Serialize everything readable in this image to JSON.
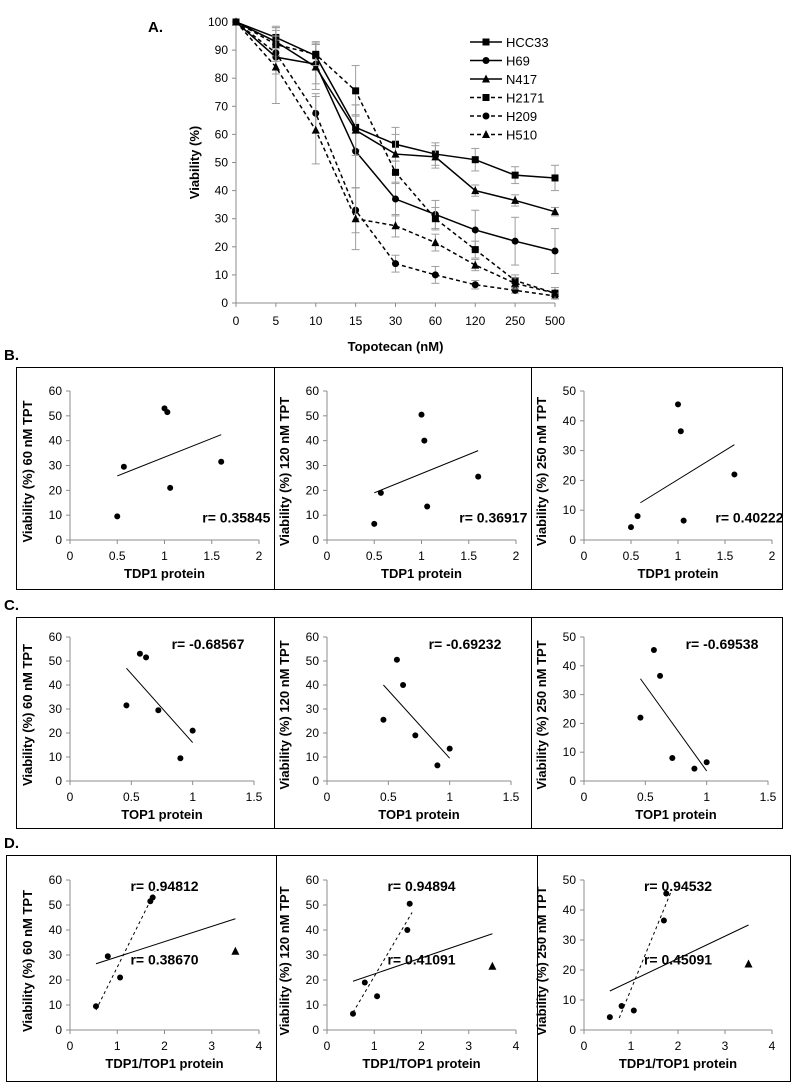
{
  "panel_labels": {
    "a": "A.",
    "b": "B.",
    "c": "C.",
    "d": "D."
  },
  "chart_data": [
    {
      "id": "A",
      "type": "line",
      "xlabel": "Topotecan (nM)",
      "ylabel": "Viability (%)",
      "categories": [
        "0",
        "5",
        "10",
        "15",
        "30",
        "60",
        "120",
        "250",
        "500"
      ],
      "ylim": [
        0,
        100
      ],
      "yticks": [
        0,
        10,
        20,
        30,
        40,
        50,
        60,
        70,
        80,
        90,
        100
      ],
      "legend_position": "top-right",
      "series": [
        {
          "name": "HCC33",
          "style": "solid",
          "marker": "square",
          "values": [
            100,
            94.5,
            88,
            62.5,
            56.5,
            53,
            51,
            45.5,
            44.5
          ],
          "err": [
            0,
            4,
            5,
            8,
            6,
            4,
            4,
            3,
            4.5
          ]
        },
        {
          "name": "H69",
          "style": "solid",
          "marker": "circle",
          "values": [
            100,
            87.5,
            85,
            54,
            37,
            31.5,
            26,
            22,
            18.5
          ],
          "err": [
            0,
            6,
            7,
            13,
            6,
            5,
            7,
            8.5,
            8
          ]
        },
        {
          "name": "N417",
          "style": "solid",
          "marker": "triangle",
          "values": [
            100,
            93,
            84,
            61.5,
            53,
            52,
            40,
            36.5,
            32.5
          ],
          "err": [
            0,
            5,
            8,
            9,
            7,
            4,
            2,
            2,
            1.5
          ]
        },
        {
          "name": "H2171",
          "style": "dashed",
          "marker": "square",
          "values": [
            100,
            92,
            88.5,
            75.5,
            46.5,
            30,
            19,
            8,
            3.5
          ],
          "err": [
            0,
            6,
            4,
            9,
            4,
            4,
            3,
            2,
            2
          ]
        },
        {
          "name": "H209",
          "style": "dashed",
          "marker": "circle",
          "values": [
            100,
            89,
            67.5,
            33,
            14,
            10,
            6.5,
            4.5,
            2.5
          ],
          "err": [
            0,
            6,
            7,
            8,
            3,
            3,
            1.5,
            1,
            1
          ]
        },
        {
          "name": "H510",
          "style": "dashed",
          "marker": "triangle",
          "values": [
            100,
            84,
            61.5,
            30,
            27.5,
            21.5,
            13.5,
            7,
            3.5
          ],
          "err": [
            0,
            13,
            12,
            11,
            4,
            3,
            2,
            2,
            2
          ]
        }
      ]
    },
    {
      "id": "B1",
      "type": "scatter",
      "xlabel": "TDP1 protein",
      "ylabel": "Viability (%) 60 nM TPT",
      "xlim": [
        0,
        2
      ],
      "xticks": [
        0,
        0.5,
        1,
        1.5,
        2
      ],
      "ylim": [
        0,
        60
      ],
      "yticks": [
        0,
        10,
        20,
        30,
        40,
        50,
        60
      ],
      "points": [
        [
          0.5,
          9.5
        ],
        [
          0.57,
          29.5
        ],
        [
          1.0,
          53
        ],
        [
          1.03,
          51.5
        ],
        [
          1.06,
          21
        ],
        [
          1.6,
          31.5
        ]
      ],
      "fit": [
        [
          0.5,
          25.8
        ],
        [
          1.6,
          42.4
        ]
      ],
      "annotation": "r= 0.35845"
    },
    {
      "id": "B2",
      "type": "scatter",
      "xlabel": "TDP1 protein",
      "ylabel": "Viability (%) 120 nM TPT",
      "xlim": [
        0,
        2
      ],
      "xticks": [
        0,
        0.5,
        1,
        1.5,
        2
      ],
      "ylim": [
        0,
        60
      ],
      "yticks": [
        0,
        10,
        20,
        30,
        40,
        50,
        60
      ],
      "points": [
        [
          0.5,
          6.5
        ],
        [
          0.57,
          19
        ],
        [
          1.0,
          50.5
        ],
        [
          1.03,
          40
        ],
        [
          1.06,
          13.5
        ],
        [
          1.6,
          25.5
        ]
      ],
      "fit": [
        [
          0.5,
          19
        ],
        [
          1.6,
          36
        ]
      ],
      "annotation": "r= 0.36917"
    },
    {
      "id": "B3",
      "type": "scatter",
      "xlabel": "TDP1 protein",
      "ylabel": "Viability (%) 250 nM TPT",
      "xlim": [
        0,
        2
      ],
      "xticks": [
        0,
        0.5,
        1,
        1.5,
        2
      ],
      "ylim": [
        0,
        50
      ],
      "yticks": [
        0,
        10,
        20,
        30,
        40,
        50
      ],
      "points": [
        [
          0.5,
          4.3
        ],
        [
          0.57,
          8
        ],
        [
          1.0,
          45.5
        ],
        [
          1.03,
          36.5
        ],
        [
          1.06,
          6.5
        ],
        [
          1.6,
          22
        ]
      ],
      "fit": [
        [
          0.6,
          12.5
        ],
        [
          1.6,
          32
        ]
      ],
      "annotation": "r= 0.40222"
    },
    {
      "id": "C1",
      "type": "scatter",
      "xlabel": "TOP1 protein",
      "ylabel": "Viability (%) 60 nM TPT",
      "xlim": [
        0,
        1.5
      ],
      "xticks": [
        0,
        0.5,
        1,
        1.5
      ],
      "ylim": [
        0,
        60
      ],
      "yticks": [
        0,
        10,
        20,
        30,
        40,
        50,
        60
      ],
      "points": [
        [
          0.46,
          31.5
        ],
        [
          0.57,
          53
        ],
        [
          0.62,
          51.5
        ],
        [
          0.72,
          29.5
        ],
        [
          0.9,
          9.5
        ],
        [
          1.0,
          21
        ]
      ],
      "fit": [
        [
          0.46,
          47
        ],
        [
          1.0,
          16
        ]
      ],
      "annotation": "r= -0.68567"
    },
    {
      "id": "C2",
      "type": "scatter",
      "xlabel": "TOP1 protein",
      "ylabel": "Viability (%) 120 nM TPT",
      "xlim": [
        0,
        1.5
      ],
      "xticks": [
        0,
        0.5,
        1,
        1.5
      ],
      "ylim": [
        0,
        60
      ],
      "yticks": [
        0,
        10,
        20,
        30,
        40,
        50,
        60
      ],
      "points": [
        [
          0.46,
          25.5
        ],
        [
          0.57,
          50.5
        ],
        [
          0.62,
          40
        ],
        [
          0.72,
          19
        ],
        [
          0.9,
          6.5
        ],
        [
          1.0,
          13.5
        ]
      ],
      "fit": [
        [
          0.46,
          40
        ],
        [
          1.0,
          9.5
        ]
      ],
      "annotation": "r= -0.69232"
    },
    {
      "id": "C3",
      "type": "scatter",
      "xlabel": "TOP1 protein",
      "ylabel": "Viability (%) 250 nM TPT",
      "xlim": [
        0,
        1.5
      ],
      "xticks": [
        0,
        0.5,
        1,
        1.5
      ],
      "ylim": [
        0,
        50
      ],
      "yticks": [
        0,
        10,
        20,
        30,
        40,
        50
      ],
      "points": [
        [
          0.46,
          22
        ],
        [
          0.57,
          45.5
        ],
        [
          0.62,
          36.5
        ],
        [
          0.72,
          8
        ],
        [
          0.9,
          4.3
        ],
        [
          1.0,
          6.5
        ]
      ],
      "fit": [
        [
          0.46,
          35.5
        ],
        [
          1.0,
          3.5
        ]
      ],
      "annotation": "r= -0.69538"
    },
    {
      "id": "D1",
      "type": "scatter",
      "xlabel": "TDP1/TOP1 protein",
      "ylabel": "Viability (%) 60 nM TPT",
      "xlim": [
        0,
        4
      ],
      "xticks": [
        0,
        1,
        2,
        3,
        4
      ],
      "ylim": [
        0,
        60
      ],
      "yticks": [
        0,
        10,
        20,
        30,
        40,
        50,
        60
      ],
      "points": [
        [
          0.55,
          9.5
        ],
        [
          0.8,
          29.5
        ],
        [
          1.06,
          21
        ],
        [
          1.7,
          51.5
        ],
        [
          1.75,
          53
        ]
      ],
      "outlier": [
        3.5,
        31.5
      ],
      "fit_dashed": [
        [
          0.55,
          8
        ],
        [
          1.8,
          55.5
        ]
      ],
      "fit_solid": [
        [
          0.55,
          26.5
        ],
        [
          3.5,
          44.5
        ]
      ],
      "annotation_dashed": "r= 0.94812",
      "annotation_solid": "r= 0.38670"
    },
    {
      "id": "D2",
      "type": "scatter",
      "xlabel": "TDP1/TOP1 protein",
      "ylabel": "Viability (%) 120 nM TPT",
      "xlim": [
        0,
        4
      ],
      "xticks": [
        0,
        1,
        2,
        3,
        4
      ],
      "ylim": [
        0,
        60
      ],
      "yticks": [
        0,
        10,
        20,
        30,
        40,
        50,
        60
      ],
      "points": [
        [
          0.55,
          6.5
        ],
        [
          0.8,
          19
        ],
        [
          1.06,
          13.5
        ],
        [
          1.7,
          40
        ],
        [
          1.75,
          50.5
        ]
      ],
      "outlier": [
        3.5,
        25.5
      ],
      "fit_dashed": [
        [
          0.55,
          7
        ],
        [
          1.8,
          47
        ]
      ],
      "fit_solid": [
        [
          0.55,
          19.5
        ],
        [
          3.5,
          38.5
        ]
      ],
      "annotation_dashed": "r= 0.94894",
      "annotation_solid": "r= 0.41091"
    },
    {
      "id": "D3",
      "type": "scatter",
      "xlabel": "TDP1/TOP1 protein",
      "ylabel": "Viability (%) 250 nM TPT",
      "xlim": [
        0,
        4
      ],
      "xticks": [
        0,
        1,
        2,
        3,
        4
      ],
      "ylim": [
        0,
        50
      ],
      "yticks": [
        0,
        10,
        20,
        30,
        40,
        50
      ],
      "points": [
        [
          0.55,
          4.3
        ],
        [
          0.8,
          8
        ],
        [
          1.06,
          6.5
        ],
        [
          1.7,
          36.5
        ],
        [
          1.75,
          45.5
        ]
      ],
      "outlier": [
        3.5,
        22
      ],
      "fit_dashed": [
        [
          0.75,
          4
        ],
        [
          1.85,
          46
        ]
      ],
      "fit_solid": [
        [
          0.55,
          13
        ],
        [
          3.5,
          35
        ]
      ],
      "annotation_dashed": "r= 0.94532",
      "annotation_solid": "r= 0.45091"
    }
  ]
}
